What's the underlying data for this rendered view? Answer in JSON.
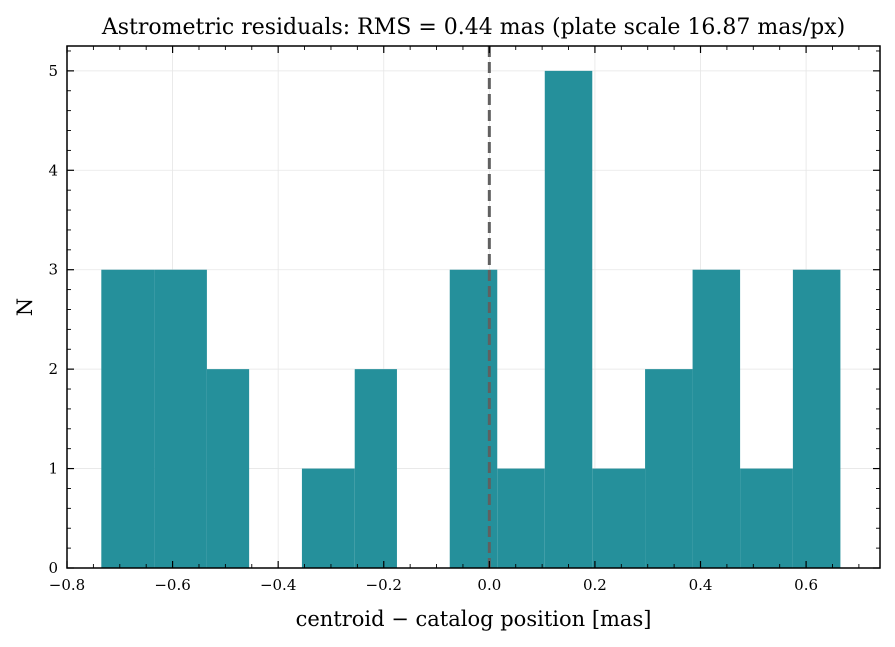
{
  "chart_data": {
    "type": "bar",
    "title": "Astrometric residuals: RMS = 0.44 mas (plate scale 16.87 mas/px)",
    "xlabel": "centroid − catalog position [mas]",
    "ylabel": "N",
    "xlim": [
      -0.8,
      0.74
    ],
    "ylim": [
      0,
      5.25
    ],
    "x_ticks": [
      -0.8,
      -0.6,
      -0.4,
      -0.2,
      0.0,
      0.2,
      0.4,
      0.6
    ],
    "x_tick_labels": [
      "−0.8",
      "−0.6",
      "−0.4",
      "−0.2",
      "0.0",
      "0.2",
      "0.4",
      "0.6"
    ],
    "y_ticks": [
      0,
      1,
      2,
      3,
      4,
      5
    ],
    "y_tick_labels": [
      "0",
      "1",
      "2",
      "3",
      "4",
      "5"
    ],
    "grid": true,
    "bar_color": "#25909b",
    "reference_line": {
      "x": 0.0,
      "style": "dashed",
      "color": "#606060"
    },
    "bins": [
      {
        "x0": -0.735,
        "x1": -0.635,
        "count": 3
      },
      {
        "x0": -0.635,
        "x1": -0.535,
        "count": 3
      },
      {
        "x0": -0.535,
        "x1": -0.455,
        "count": 2
      },
      {
        "x0": -0.455,
        "x1": -0.355,
        "count": 0
      },
      {
        "x0": -0.355,
        "x1": -0.255,
        "count": 1
      },
      {
        "x0": -0.255,
        "x1": -0.175,
        "count": 2
      },
      {
        "x0": -0.175,
        "x1": -0.075,
        "count": 0
      },
      {
        "x0": -0.075,
        "x1": 0.015,
        "count": 3
      },
      {
        "x0": 0.015,
        "x1": 0.105,
        "count": 1
      },
      {
        "x0": 0.105,
        "x1": 0.195,
        "count": 5
      },
      {
        "x0": 0.195,
        "x1": 0.295,
        "count": 1
      },
      {
        "x0": 0.295,
        "x1": 0.385,
        "count": 2
      },
      {
        "x0": 0.385,
        "x1": 0.475,
        "count": 3
      },
      {
        "x0": 0.475,
        "x1": 0.575,
        "count": 1
      },
      {
        "x0": 0.575,
        "x1": 0.665,
        "count": 3
      }
    ]
  }
}
